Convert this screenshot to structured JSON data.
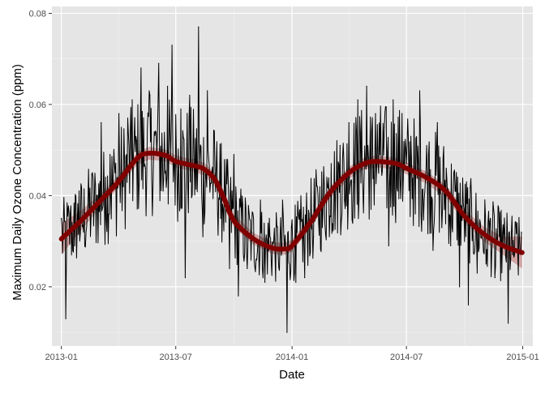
{
  "chart_data": {
    "type": "line",
    "title": "",
    "xlabel": "Date",
    "ylabel": "Maximum Daily Ozone Concentration (ppm)",
    "xlim": [
      "2012-12-17",
      "2015-01-17"
    ],
    "ylim": [
      0.007,
      0.0815
    ],
    "x_ticks": [
      "2013-01",
      "2013-07",
      "2014-01",
      "2014-07",
      "2015-01"
    ],
    "y_ticks": [
      0.02,
      0.04,
      0.06,
      0.08
    ],
    "y_tick_labels": [
      "0.02",
      "0.04",
      "0.06",
      "0.08"
    ],
    "grid": true,
    "legend": "none",
    "colors": {
      "panel": "#e5e5e5",
      "grid_major": "#ffffff",
      "grid_minor": "#f2f2f2",
      "raw_line": "#000000",
      "smooth_line": "#800000",
      "smooth_band": "#c07070",
      "axis_text": "#4d4d4d"
    },
    "series": [
      {
        "kind": "daily",
        "x": [
          "2013-01-01",
          "2013-01-08",
          "2013-01-15",
          "2013-01-22",
          "2013-01-29",
          "2013-02-05",
          "2013-02-12",
          "2013-02-19",
          "2013-02-26",
          "2013-03-05",
          "2013-03-12",
          "2013-03-19",
          "2013-03-26",
          "2013-04-02",
          "2013-04-09",
          "2013-04-16",
          "2013-04-23",
          "2013-04-30",
          "2013-05-07",
          "2013-05-14",
          "2013-05-21",
          "2013-05-28",
          "2013-06-04",
          "2013-06-11",
          "2013-06-18",
          "2013-06-25",
          "2013-07-02",
          "2013-07-09",
          "2013-07-16",
          "2013-07-23",
          "2013-07-30",
          "2013-08-06",
          "2013-08-13",
          "2013-08-20",
          "2013-08-27",
          "2013-09-03",
          "2013-09-10",
          "2013-09-17",
          "2013-09-24",
          "2013-10-01",
          "2013-10-08",
          "2013-10-15",
          "2013-10-22",
          "2013-10-29",
          "2013-11-05",
          "2013-11-12",
          "2013-11-19",
          "2013-11-26",
          "2013-12-03",
          "2013-12-10",
          "2013-12-17",
          "2013-12-24",
          "2013-12-31",
          "2014-01-07",
          "2014-01-14",
          "2014-01-21",
          "2014-01-28",
          "2014-02-04",
          "2014-02-11",
          "2014-02-18",
          "2014-02-25",
          "2014-03-04",
          "2014-03-11",
          "2014-03-18",
          "2014-03-25",
          "2014-04-01",
          "2014-04-08",
          "2014-04-15",
          "2014-04-22",
          "2014-04-29",
          "2014-05-06",
          "2014-05-13",
          "2014-05-20",
          "2014-05-27",
          "2014-06-03",
          "2014-06-10",
          "2014-06-17",
          "2014-06-24",
          "2014-07-01",
          "2014-07-08",
          "2014-07-15",
          "2014-07-22",
          "2014-07-29",
          "2014-08-05",
          "2014-08-12",
          "2014-08-19",
          "2014-08-26",
          "2014-09-02",
          "2014-09-09",
          "2014-09-16",
          "2014-09-23",
          "2014-09-30",
          "2014-10-07",
          "2014-10-14",
          "2014-10-21",
          "2014-10-28",
          "2014-11-04",
          "2014-11-11",
          "2014-11-18",
          "2014-11-25",
          "2014-12-02",
          "2014-12-09",
          "2014-12-16",
          "2014-12-23",
          "2014-12-30"
        ],
        "values": [
          0.035,
          0.013,
          0.036,
          0.029,
          0.041,
          0.032,
          0.038,
          0.045,
          0.04,
          0.056,
          0.044,
          0.049,
          0.047,
          0.058,
          0.042,
          0.057,
          0.061,
          0.052,
          0.068,
          0.046,
          0.062,
          0.054,
          0.069,
          0.041,
          0.064,
          0.073,
          0.049,
          0.059,
          0.022,
          0.062,
          0.048,
          0.077,
          0.031,
          0.063,
          0.045,
          0.046,
          0.035,
          0.042,
          0.024,
          0.049,
          0.018,
          0.038,
          0.024,
          0.032,
          0.026,
          0.039,
          0.021,
          0.035,
          0.03,
          0.027,
          0.039,
          0.01,
          0.033,
          0.021,
          0.032,
          0.022,
          0.036,
          0.031,
          0.04,
          0.033,
          0.044,
          0.047,
          0.041,
          0.051,
          0.039,
          0.056,
          0.043,
          0.061,
          0.046,
          0.064,
          0.037,
          0.058,
          0.049,
          0.055,
          0.029,
          0.061,
          0.041,
          0.058,
          0.047,
          0.053,
          0.036,
          0.063,
          0.039,
          0.049,
          0.028,
          0.056,
          0.033,
          0.046,
          0.029,
          0.041,
          0.02,
          0.037,
          0.016,
          0.034,
          0.023,
          0.031,
          0.025,
          0.035,
          0.022,
          0.031,
          0.029,
          0.012,
          0.027,
          0.034,
          0.032
        ]
      },
      {
        "kind": "smooth",
        "x": [
          "2013-01-01",
          "2013-02-01",
          "2013-03-01",
          "2013-04-01",
          "2013-05-01",
          "2013-05-20",
          "2013-06-15",
          "2013-07-01",
          "2013-08-01",
          "2013-08-15",
          "2013-09-01",
          "2013-09-15",
          "2013-10-01",
          "2013-11-01",
          "2013-12-01",
          "2013-12-20",
          "2014-01-01",
          "2014-02-01",
          "2014-03-01",
          "2014-04-01",
          "2014-04-25",
          "2014-05-15",
          "2014-06-15",
          "2014-07-01",
          "2014-08-01",
          "2014-09-01",
          "2014-10-01",
          "2014-11-01",
          "2014-12-01",
          "2014-12-31"
        ],
        "values": [
          0.0305,
          0.0345,
          0.0385,
          0.043,
          0.0482,
          0.0493,
          0.0488,
          0.0475,
          0.0465,
          0.0458,
          0.0435,
          0.0395,
          0.0345,
          0.0305,
          0.0285,
          0.0283,
          0.029,
          0.0345,
          0.0405,
          0.045,
          0.047,
          0.0475,
          0.047,
          0.046,
          0.044,
          0.041,
          0.0355,
          0.0315,
          0.029,
          0.0275
        ],
        "band_halfwidth": [
          0.0035,
          0.0022,
          0.0015,
          0.0013,
          0.0014,
          0.0014,
          0.0013,
          0.0013,
          0.0013,
          0.0014,
          0.0014,
          0.0015,
          0.0014,
          0.0013,
          0.0013,
          0.0013,
          0.0013,
          0.0013,
          0.0013,
          0.0013,
          0.0013,
          0.0013,
          0.0013,
          0.0013,
          0.0013,
          0.0014,
          0.0014,
          0.0016,
          0.002,
          0.0035
        ]
      }
    ]
  }
}
